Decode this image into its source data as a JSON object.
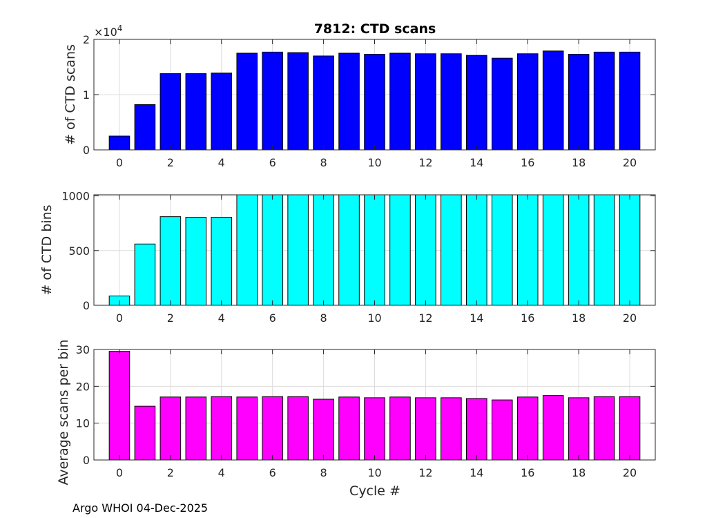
{
  "chart_data": [
    {
      "type": "bar",
      "title": "7812: CTD scans",
      "xlabel": "",
      "ylabel": "# of CTD scans",
      "exponent_base": "×10",
      "exponent_power": "4",
      "color": "#0000ff",
      "x": [
        0,
        1,
        2,
        3,
        4,
        5,
        6,
        7,
        8,
        9,
        10,
        11,
        12,
        13,
        14,
        15,
        16,
        17,
        18,
        19,
        20
      ],
      "values": [
        2500,
        8200,
        13800,
        13800,
        13900,
        17500,
        17700,
        17600,
        17000,
        17500,
        17300,
        17500,
        17400,
        17400,
        17100,
        16600,
        17400,
        17900,
        17300,
        17700,
        17700
      ],
      "xlim": [
        -1,
        21
      ],
      "ylim": [
        0,
        20000
      ],
      "xticks": [
        0,
        2,
        4,
        6,
        8,
        10,
        12,
        14,
        16,
        18,
        20
      ],
      "yticks": [
        0,
        10000,
        20000
      ],
      "ytick_labels": [
        "0",
        "1",
        "2"
      ]
    },
    {
      "type": "bar",
      "title": "",
      "xlabel": "",
      "ylabel": "# of CTD bins",
      "color": "#00ffff",
      "x": [
        0,
        1,
        2,
        3,
        4,
        5,
        6,
        7,
        8,
        9,
        10,
        11,
        12,
        13,
        14,
        15,
        16,
        17,
        18,
        19,
        20
      ],
      "values": [
        85,
        560,
        810,
        805,
        805,
        1010,
        1010,
        1010,
        1010,
        1010,
        1010,
        1010,
        1010,
        1010,
        1010,
        1010,
        1010,
        1010,
        1010,
        1010,
        1010
      ],
      "xlim": [
        -1,
        21
      ],
      "ylim": [
        0,
        1010
      ],
      "xticks": [
        0,
        2,
        4,
        6,
        8,
        10,
        12,
        14,
        16,
        18,
        20
      ],
      "yticks": [
        0,
        500,
        1000
      ],
      "ytick_labels": [
        "0",
        "500",
        "1000"
      ]
    },
    {
      "type": "bar",
      "title": "",
      "xlabel": "Cycle #",
      "ylabel": "Average scans per bin",
      "color": "#ff00ff",
      "x": [
        0,
        1,
        2,
        3,
        4,
        5,
        6,
        7,
        8,
        9,
        10,
        11,
        12,
        13,
        14,
        15,
        16,
        17,
        18,
        19,
        20
      ],
      "values": [
        29.5,
        14.6,
        17.1,
        17.1,
        17.2,
        17.1,
        17.2,
        17.2,
        16.5,
        17.1,
        16.9,
        17.1,
        16.9,
        16.9,
        16.7,
        16.3,
        17.1,
        17.5,
        16.9,
        17.2,
        17.2
      ],
      "xlim": [
        -1,
        21
      ],
      "ylim": [
        0,
        30
      ],
      "xticks": [
        0,
        2,
        4,
        6,
        8,
        10,
        12,
        14,
        16,
        18,
        20
      ],
      "yticks": [
        0,
        10,
        20,
        30
      ],
      "ytick_labels": [
        "0",
        "10",
        "20",
        "30"
      ]
    }
  ],
  "footer": "Argo WHOI 04-Dec-2025"
}
